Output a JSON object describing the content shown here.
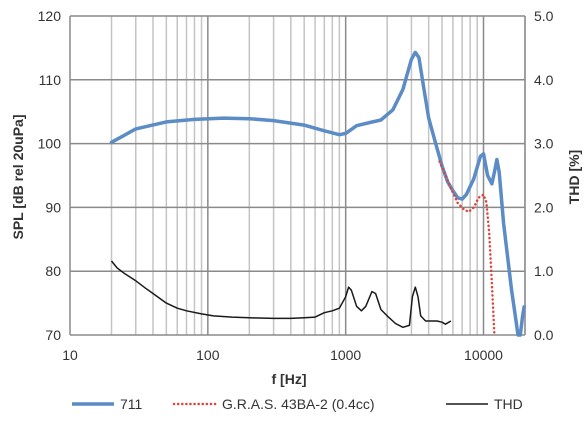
{
  "chart_data": {
    "type": "line",
    "xscale": "log",
    "xlim": [
      10,
      20000
    ],
    "ylim": [
      70,
      120
    ],
    "y2lim": [
      0,
      5
    ],
    "grid": true,
    "xlabel": "f [Hz]",
    "ylabel": "SPL [dB rel 20uPa]",
    "y2label": "THD [%]",
    "x_ticks": [
      "10",
      "100",
      "1000",
      "10000"
    ],
    "y_ticks": [
      "70",
      "80",
      "90",
      "100",
      "110",
      "120"
    ],
    "y2_ticks": [
      "0.0",
      "1.0",
      "2.0",
      "3.0",
      "4.0",
      "5.0"
    ],
    "legend_position": "bottom",
    "series": [
      {
        "name": "711",
        "axis": "left",
        "color": "#5b8cc6",
        "style": "solid",
        "points": [
          [
            20,
            100.2
          ],
          [
            30,
            102.3
          ],
          [
            50,
            103.4
          ],
          [
            80,
            103.8
          ],
          [
            130,
            104.0
          ],
          [
            200,
            103.9
          ],
          [
            300,
            103.6
          ],
          [
            500,
            102.9
          ],
          [
            700,
            102.0
          ],
          [
            900,
            101.4
          ],
          [
            1000,
            101.6
          ],
          [
            1200,
            102.8
          ],
          [
            1500,
            103.3
          ],
          [
            1800,
            103.7
          ],
          [
            2200,
            105.3
          ],
          [
            2600,
            108.5
          ],
          [
            3000,
            113.2
          ],
          [
            3200,
            114.3
          ],
          [
            3400,
            113.5
          ],
          [
            3700,
            108.5
          ],
          [
            4000,
            104.0
          ],
          [
            4500,
            100.0
          ],
          [
            5000,
            96.5
          ],
          [
            5500,
            94.0
          ],
          [
            6000,
            92.6
          ],
          [
            6500,
            91.5
          ],
          [
            7000,
            91.3
          ],
          [
            7500,
            92.0
          ],
          [
            8500,
            94.5
          ],
          [
            9500,
            98.0
          ],
          [
            10000,
            98.4
          ],
          [
            10700,
            95.0
          ],
          [
            11500,
            93.7
          ],
          [
            12000,
            95.5
          ],
          [
            12500,
            97.5
          ],
          [
            13000,
            95.5
          ],
          [
            14000,
            87.5
          ],
          [
            15000,
            82.0
          ],
          [
            16000,
            77.0
          ],
          [
            17000,
            73.0
          ],
          [
            17800,
            70.0
          ],
          [
            18500,
            70.0
          ],
          [
            19200,
            73.0
          ],
          [
            19700,
            74.4
          ]
        ]
      },
      {
        "name": "G.R.A.S. 43BA-2 (0.4cc)",
        "axis": "left",
        "color": "#e0443a",
        "style": "dotted",
        "points": [
          [
            4800,
            97.2
          ],
          [
            5200,
            95.5
          ],
          [
            5800,
            93.0
          ],
          [
            6500,
            90.7
          ],
          [
            7200,
            89.7
          ],
          [
            7800,
            89.3
          ],
          [
            8500,
            90.0
          ],
          [
            9200,
            91.5
          ],
          [
            10000,
            92.0
          ],
          [
            10500,
            90.8
          ],
          [
            11000,
            86.0
          ],
          [
            11500,
            78.0
          ],
          [
            12000,
            70.0
          ]
        ]
      },
      {
        "name": "THD",
        "axis": "right",
        "color": "#1a1a1a",
        "style": "solid",
        "points": [
          [
            20,
            1.16
          ],
          [
            22,
            1.05
          ],
          [
            25,
            0.96
          ],
          [
            30,
            0.85
          ],
          [
            35,
            0.74
          ],
          [
            40,
            0.65
          ],
          [
            50,
            0.5
          ],
          [
            60,
            0.42
          ],
          [
            70,
            0.38
          ],
          [
            90,
            0.33
          ],
          [
            110,
            0.3
          ],
          [
            150,
            0.28
          ],
          [
            200,
            0.27
          ],
          [
            300,
            0.26
          ],
          [
            400,
            0.26
          ],
          [
            500,
            0.27
          ],
          [
            600,
            0.28
          ],
          [
            700,
            0.35
          ],
          [
            800,
            0.38
          ],
          [
            900,
            0.42
          ],
          [
            1000,
            0.6
          ],
          [
            1050,
            0.75
          ],
          [
            1100,
            0.7
          ],
          [
            1200,
            0.45
          ],
          [
            1300,
            0.38
          ],
          [
            1400,
            0.45
          ],
          [
            1550,
            0.68
          ],
          [
            1650,
            0.65
          ],
          [
            1800,
            0.4
          ],
          [
            2000,
            0.3
          ],
          [
            2300,
            0.18
          ],
          [
            2600,
            0.12
          ],
          [
            2900,
            0.15
          ],
          [
            3050,
            0.6
          ],
          [
            3200,
            0.75
          ],
          [
            3350,
            0.6
          ],
          [
            3500,
            0.3
          ],
          [
            3800,
            0.22
          ],
          [
            4200,
            0.22
          ],
          [
            4600,
            0.22
          ],
          [
            5000,
            0.2
          ],
          [
            5300,
            0.17
          ],
          [
            5600,
            0.2
          ],
          [
            5800,
            0.22
          ]
        ]
      }
    ]
  }
}
